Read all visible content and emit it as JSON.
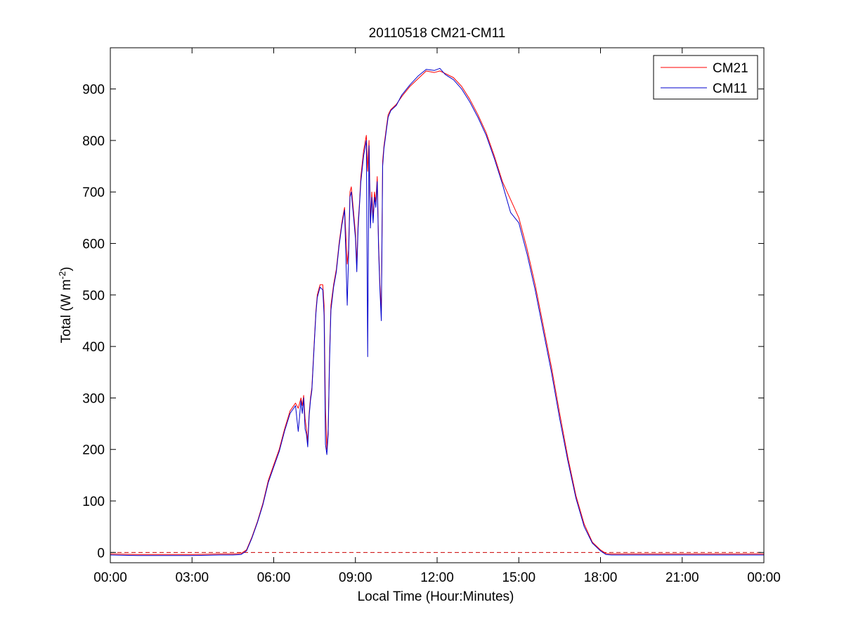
{
  "chart_data": {
    "type": "line",
    "title": "20110518 CM21-CM11",
    "xlabel": "Local Time (Hour:Minutes)",
    "ylabel_main": "Total (W m",
    "ylabel_sup": "-2",
    "ylabel_close": ")",
    "xlim": [
      0,
      24
    ],
    "ylim": [
      -20,
      980
    ],
    "xticks": [
      0,
      3,
      6,
      9,
      12,
      15,
      18,
      21,
      24
    ],
    "xtick_labels": [
      "00:00",
      "03:00",
      "06:00",
      "09:00",
      "12:00",
      "15:00",
      "18:00",
      "21:00",
      "00:00"
    ],
    "yticks": [
      0,
      100,
      200,
      300,
      400,
      500,
      600,
      700,
      800,
      900
    ],
    "ytick_labels": [
      "0",
      "100",
      "200",
      "300",
      "400",
      "500",
      "600",
      "700",
      "800",
      "900"
    ],
    "grid": false,
    "legend_position": "top-right",
    "reference_line": {
      "y": 0,
      "style": "dashed",
      "color": "#cc0000"
    },
    "x_unit": "hours",
    "series": [
      {
        "name": "CM21",
        "color": "#ff0000",
        "x": [
          0,
          1,
          2,
          3,
          4,
          4.5,
          4.8,
          5.0,
          5.2,
          5.4,
          5.6,
          5.8,
          6.0,
          6.2,
          6.4,
          6.6,
          6.8,
          6.9,
          7.0,
          7.05,
          7.1,
          7.15,
          7.2,
          7.25,
          7.3,
          7.35,
          7.4,
          7.45,
          7.5,
          7.55,
          7.6,
          7.7,
          7.8,
          7.85,
          7.9,
          7.95,
          8.0,
          8.05,
          8.1,
          8.2,
          8.3,
          8.4,
          8.5,
          8.6,
          8.7,
          8.75,
          8.8,
          8.85,
          8.9,
          9.0,
          9.05,
          9.1,
          9.15,
          9.2,
          9.3,
          9.4,
          9.45,
          9.5,
          9.55,
          9.6,
          9.65,
          9.7,
          9.75,
          9.8,
          9.85,
          9.9,
          9.95,
          10.0,
          10.05,
          10.1,
          10.15,
          10.2,
          10.3,
          10.5,
          10.7,
          11.0,
          11.3,
          11.6,
          11.9,
          12.1,
          12.3,
          12.6,
          12.9,
          13.2,
          13.5,
          13.8,
          14.1,
          14.4,
          14.7,
          15.0,
          15.3,
          15.6,
          15.9,
          16.2,
          16.5,
          16.8,
          17.1,
          17.4,
          17.7,
          18.0,
          18.2,
          18.4,
          18.6,
          18.8,
          19.0,
          19.5,
          20,
          21,
          22,
          23,
          24
        ],
        "values": [
          -3,
          -4,
          -4,
          -4,
          -3,
          -3,
          -2,
          5,
          30,
          60,
          95,
          140,
          170,
          200,
          240,
          275,
          290,
          280,
          300,
          285,
          305,
          260,
          240,
          215,
          270,
          300,
          320,
          370,
          420,
          470,
          500,
          520,
          520,
          480,
          280,
          200,
          240,
          380,
          480,
          520,
          550,
          600,
          640,
          670,
          560,
          590,
          700,
          710,
          680,
          620,
          560,
          640,
          680,
          730,
          780,
          810,
          740,
          800,
          640,
          700,
          650,
          700,
          680,
          730,
          600,
          520,
          470,
          760,
          790,
          810,
          830,
          850,
          860,
          870,
          885,
          905,
          920,
          935,
          932,
          935,
          930,
          922,
          905,
          880,
          850,
          815,
          770,
          720,
          685,
          650,
          590,
          520,
          440,
          360,
          270,
          185,
          110,
          55,
          20,
          5,
          -2,
          -3,
          -3,
          -3,
          -3,
          -3,
          -3,
          -3,
          -3,
          -3,
          -3
        ]
      },
      {
        "name": "CM11",
        "color": "#0000cc",
        "x": [
          0,
          1,
          2,
          3,
          4,
          4.5,
          4.8,
          5.0,
          5.2,
          5.4,
          5.6,
          5.8,
          6.0,
          6.2,
          6.4,
          6.6,
          6.8,
          6.9,
          7.0,
          7.05,
          7.1,
          7.15,
          7.2,
          7.25,
          7.3,
          7.35,
          7.4,
          7.45,
          7.5,
          7.55,
          7.6,
          7.7,
          7.8,
          7.85,
          7.9,
          7.95,
          8.0,
          8.05,
          8.1,
          8.2,
          8.3,
          8.4,
          8.5,
          8.6,
          8.7,
          8.75,
          8.8,
          8.85,
          8.9,
          9.0,
          9.05,
          9.1,
          9.15,
          9.2,
          9.3,
          9.4,
          9.45,
          9.5,
          9.55,
          9.6,
          9.65,
          9.7,
          9.75,
          9.8,
          9.85,
          9.9,
          9.95,
          10.0,
          10.05,
          10.1,
          10.15,
          10.2,
          10.3,
          10.5,
          10.7,
          11.0,
          11.3,
          11.6,
          11.9,
          12.1,
          12.3,
          12.6,
          12.9,
          13.2,
          13.5,
          13.8,
          14.1,
          14.4,
          14.7,
          15.0,
          15.3,
          15.6,
          15.9,
          16.2,
          16.5,
          16.8,
          17.1,
          17.4,
          17.7,
          18.0,
          18.2,
          18.4,
          18.6,
          18.8,
          19.0,
          19.5,
          20,
          21,
          22,
          23,
          24
        ],
        "values": [
          -5,
          -6,
          -6,
          -6,
          -5,
          -5,
          -4,
          3,
          28,
          58,
          92,
          136,
          166,
          196,
          236,
          270,
          285,
          235,
          295,
          270,
          300,
          240,
          230,
          205,
          265,
          295,
          315,
          365,
          415,
          465,
          495,
          515,
          510,
          460,
          210,
          190,
          230,
          370,
          470,
          515,
          545,
          595,
          635,
          665,
          480,
          580,
          690,
          700,
          670,
          610,
          545,
          630,
          675,
          720,
          770,
          800,
          380,
          790,
          630,
          690,
          640,
          690,
          670,
          720,
          590,
          510,
          450,
          750,
          785,
          805,
          825,
          845,
          858,
          868,
          888,
          908,
          925,
          938,
          936,
          940,
          928,
          918,
          900,
          875,
          845,
          810,
          765,
          715,
          660,
          640,
          580,
          510,
          430,
          350,
          260,
          178,
          105,
          50,
          18,
          3,
          -4,
          -5,
          -5,
          -5,
          -5,
          -5,
          -5,
          -5,
          -5,
          -5,
          -5
        ]
      }
    ]
  }
}
